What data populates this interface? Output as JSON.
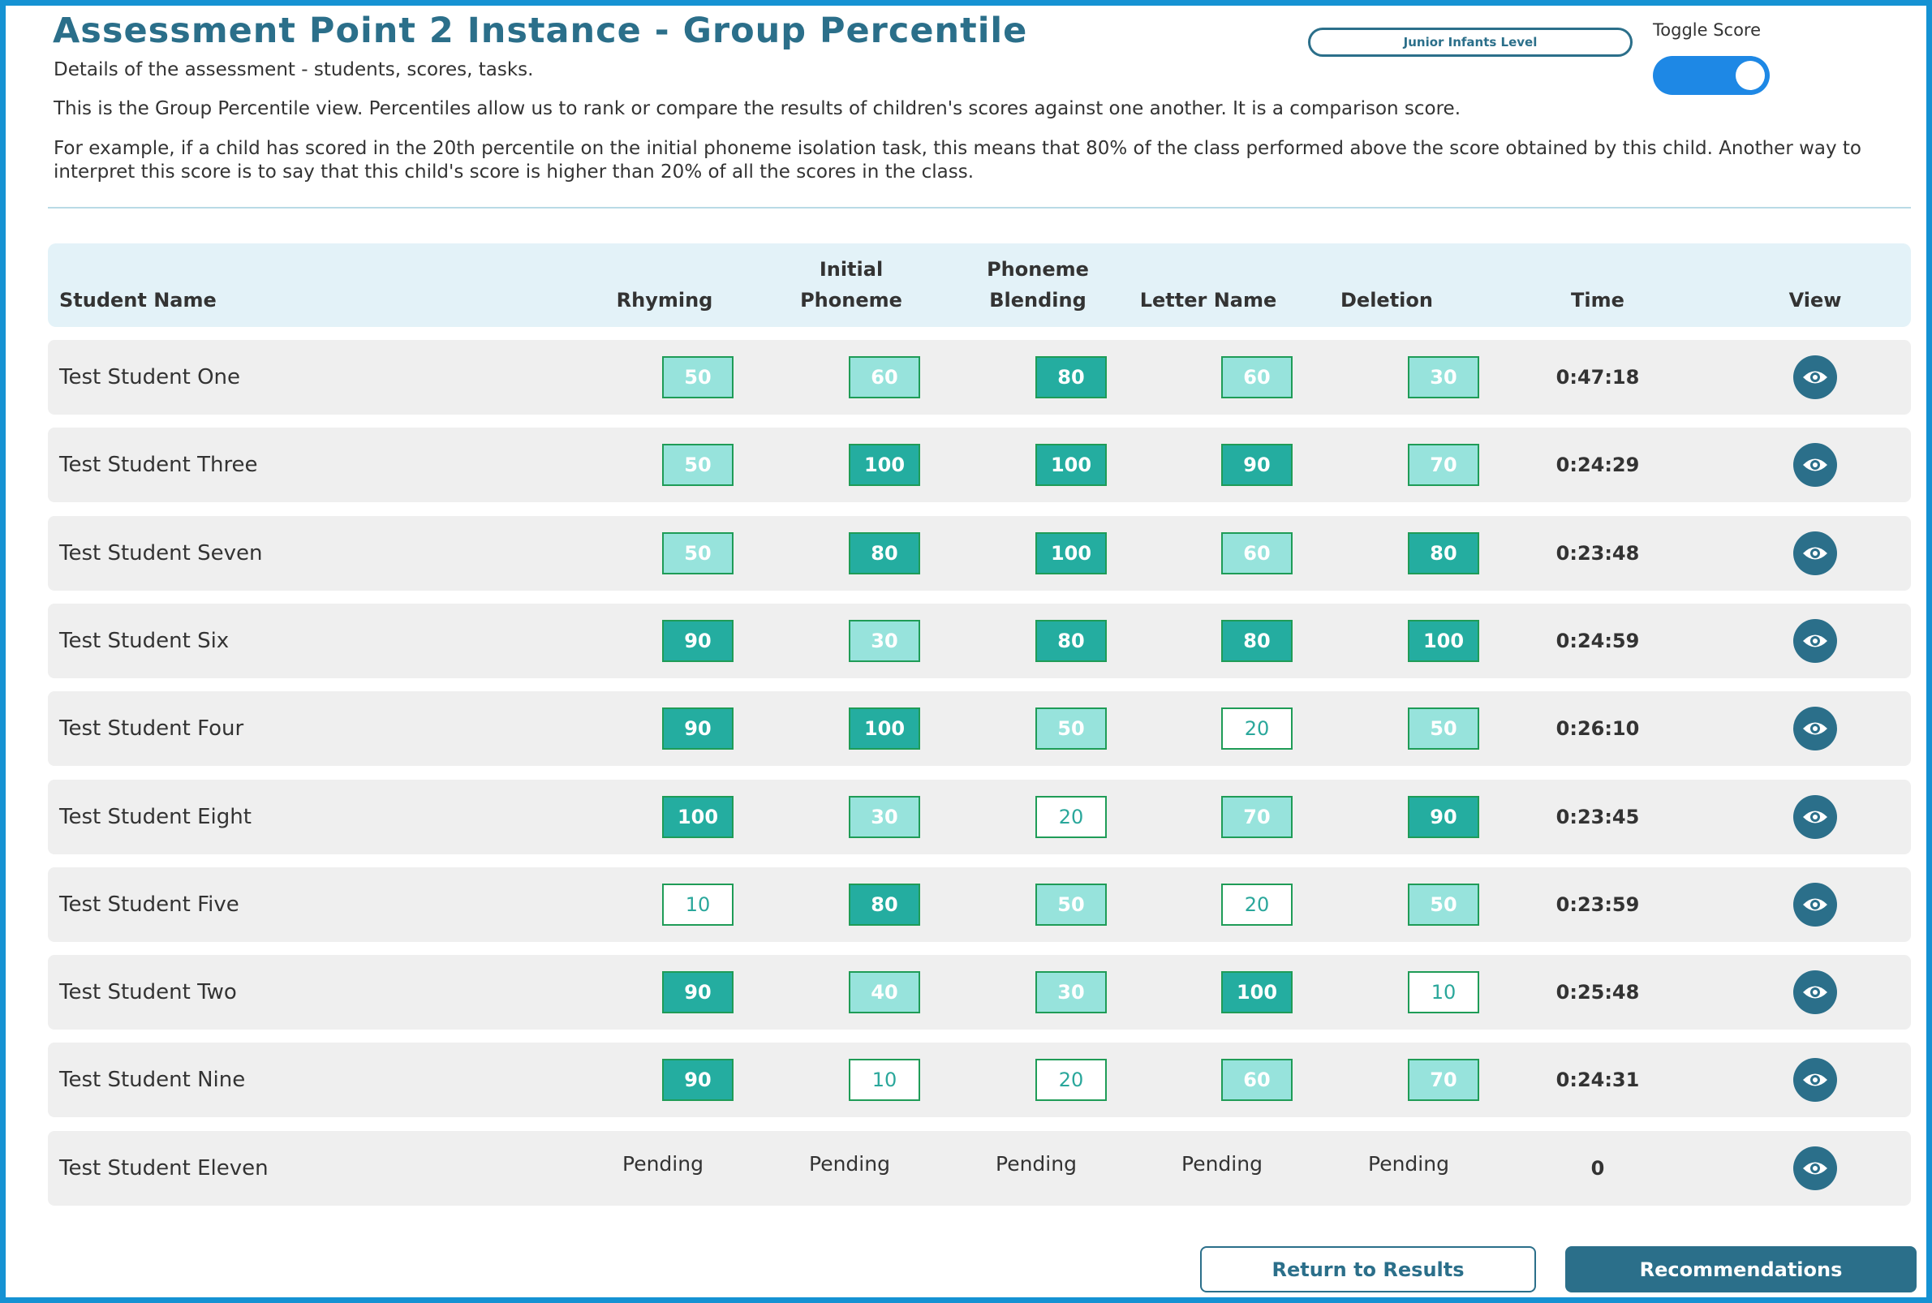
{
  "header": {
    "title": "Assessment Point 2 Instance - Group Percentile",
    "subtitle": "Details of the assessment - students, scores, tasks.",
    "description": "This is the Group Percentile view. Percentiles allow us to rank or compare the results of children's scores against one another. It is a comparison score.",
    "example": "For example, if a child has scored in the 20th percentile on the initial phoneme isolation task, this means that 80% of the class performed above the score obtained by this child. Another way to interpret this score is to say that this child's score is higher than 20% of all the scores in the class.",
    "level_label": "Junior Infants Level",
    "toggle_label": "Toggle Score",
    "toggle_on": true
  },
  "colors": {
    "brand": "#2b6f8a",
    "frame": "#1592d3",
    "toggle": "#1e88e5",
    "score_high": "#24ada0",
    "score_mid": "#97e3dc",
    "score_low": "#ffffff"
  },
  "table": {
    "columns": {
      "name": "Student Name",
      "rhyming": "Rhyming",
      "initial_1": "Initial",
      "initial_2": "Phoneme",
      "blending_1": "Phoneme",
      "blending_2": "Blending",
      "letter": "Letter Name",
      "deletion": "Deletion",
      "time": "Time",
      "view": "View"
    },
    "view_icon": "eye-icon",
    "rows": [
      {
        "name": "Test Student One",
        "scores": [
          "50",
          "60",
          "80",
          "60",
          "30"
        ],
        "levels": [
          "mid",
          "mid",
          "hi",
          "mid",
          "mid"
        ],
        "time": "0:47:18"
      },
      {
        "name": "Test Student Three",
        "scores": [
          "50",
          "100",
          "100",
          "90",
          "70"
        ],
        "levels": [
          "mid",
          "hi",
          "hi",
          "hi",
          "mid"
        ],
        "time": "0:24:29"
      },
      {
        "name": "Test Student Seven",
        "scores": [
          "50",
          "80",
          "100",
          "60",
          "80"
        ],
        "levels": [
          "mid",
          "hi",
          "hi",
          "mid",
          "hi"
        ],
        "time": "0:23:48"
      },
      {
        "name": "Test Student Six",
        "scores": [
          "90",
          "30",
          "80",
          "80",
          "100"
        ],
        "levels": [
          "hi",
          "mid",
          "hi",
          "hi",
          "hi"
        ],
        "time": "0:24:59"
      },
      {
        "name": "Test Student Four",
        "scores": [
          "90",
          "100",
          "50",
          "20",
          "50"
        ],
        "levels": [
          "hi",
          "hi",
          "mid",
          "lo",
          "mid"
        ],
        "time": "0:26:10"
      },
      {
        "name": "Test Student Eight",
        "scores": [
          "100",
          "30",
          "20",
          "70",
          "90"
        ],
        "levels": [
          "hi",
          "mid",
          "lo",
          "mid",
          "hi"
        ],
        "time": "0:23:45"
      },
      {
        "name": "Test Student Five",
        "scores": [
          "10",
          "80",
          "50",
          "20",
          "50"
        ],
        "levels": [
          "lo",
          "hi",
          "mid",
          "lo",
          "mid"
        ],
        "time": "0:23:59"
      },
      {
        "name": "Test Student Two",
        "scores": [
          "90",
          "40",
          "30",
          "100",
          "10"
        ],
        "levels": [
          "hi",
          "mid",
          "mid",
          "hi",
          "lo"
        ],
        "time": "0:25:48"
      },
      {
        "name": "Test Student Nine",
        "scores": [
          "90",
          "10",
          "20",
          "60",
          "70"
        ],
        "levels": [
          "hi",
          "lo",
          "lo",
          "mid",
          "mid"
        ],
        "time": "0:24:31"
      },
      {
        "name": "Test Student Eleven",
        "scores": [
          "Pending",
          "Pending",
          "Pending",
          "Pending",
          "Pending"
        ],
        "levels": [
          "pending",
          "pending",
          "pending",
          "pending",
          "pending"
        ],
        "time": "0"
      }
    ]
  },
  "buttons": {
    "return_label": "Return to Results",
    "recommendations_label": "Recommendations"
  }
}
